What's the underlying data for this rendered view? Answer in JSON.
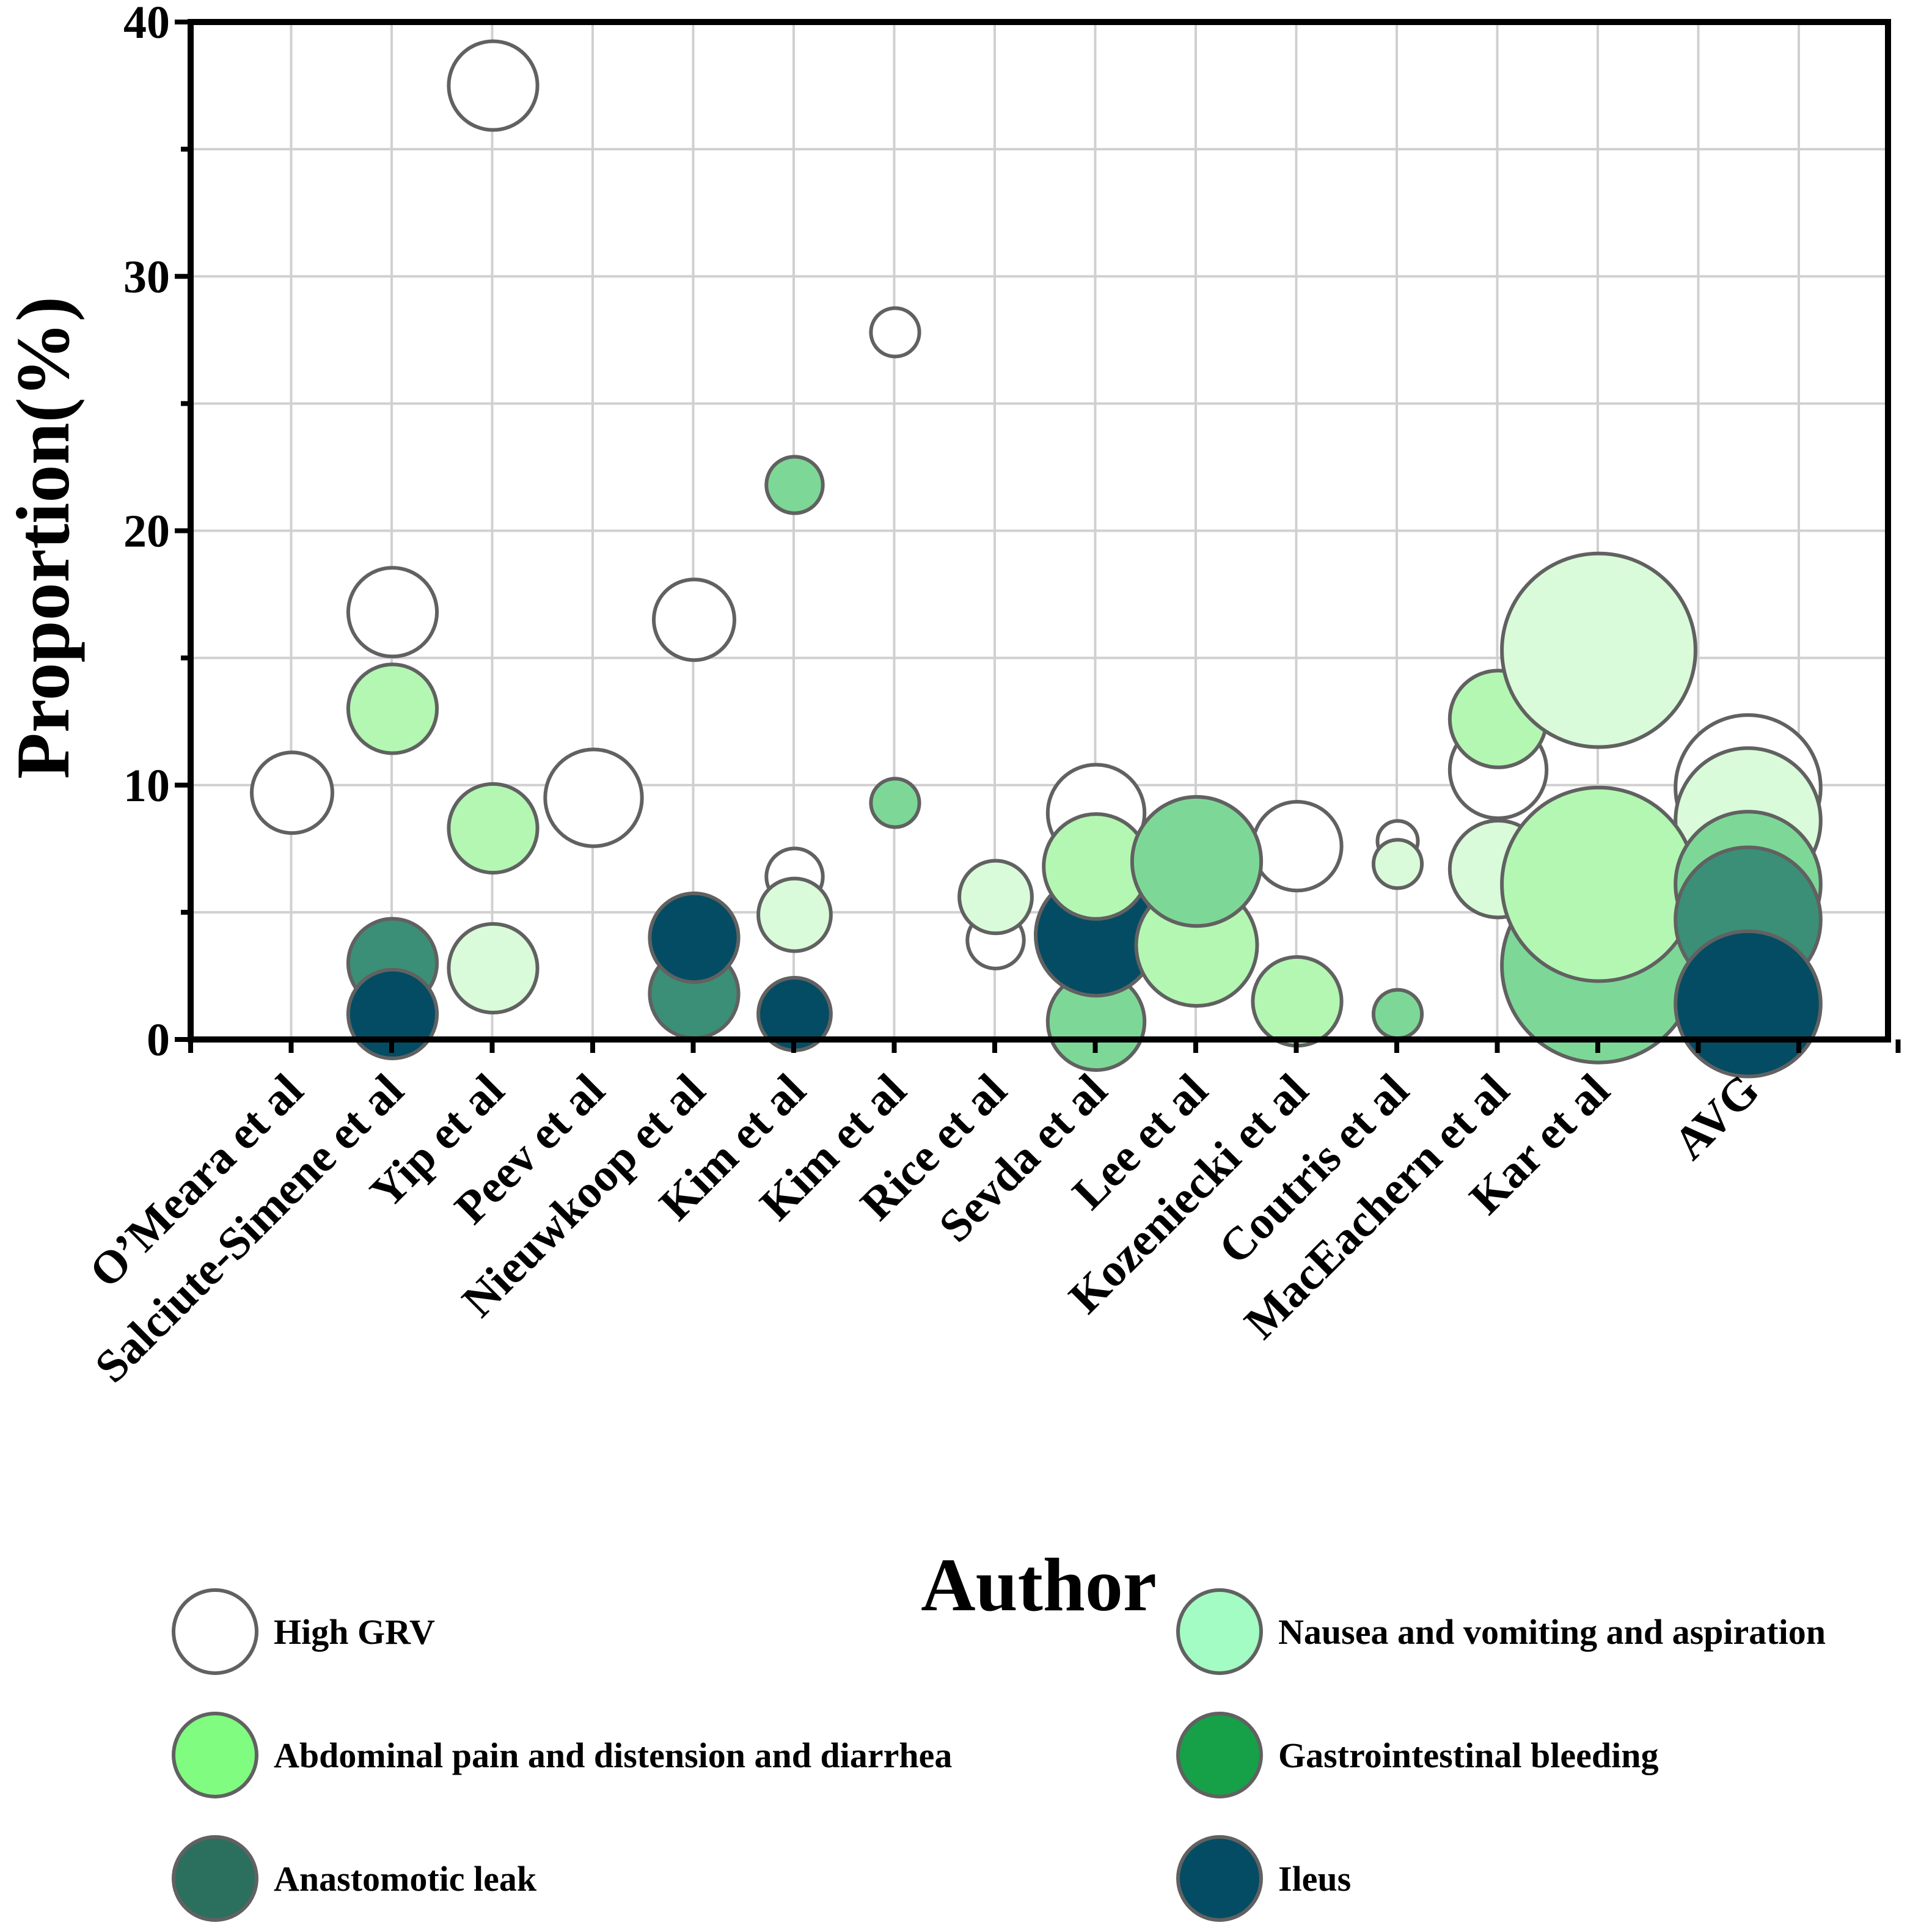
{
  "chart_data": {
    "type": "bubble",
    "title": "",
    "xlabel": "Author",
    "ylabel": "Proportion(%)",
    "ylim": [
      0,
      40
    ],
    "yticks": [
      0,
      10,
      20,
      30,
      40
    ],
    "grid": true,
    "legend_position": "bottom",
    "categories": [
      "O’Meara et al",
      "Salciute-Simene et al",
      "Yip et al",
      "Peev et al",
      "Nieuwkoop et al",
      "Kim et al",
      "Kim et al",
      "Rice et al",
      "Sevda et al",
      "Lee et al",
      "Kozeniecki et al",
      "Coutris et al",
      "MacEachern et al",
      "Kar et al",
      "AVG"
    ],
    "series": [
      {
        "name": "High GRV",
        "color": "#ffffff",
        "points": [
          {
            "category": 0,
            "y": 9.7,
            "size": 5
          },
          {
            "category": 1,
            "y": 16.8,
            "size": 5.5
          },
          {
            "category": 2,
            "y": 37.5,
            "size": 5.5
          },
          {
            "category": 3,
            "y": 9.5,
            "size": 6
          },
          {
            "category": 4,
            "y": 16.5,
            "size": 5
          },
          {
            "category": 5,
            "y": 6.4,
            "size": 3.5
          },
          {
            "category": 6,
            "y": 27.8,
            "size": 3
          },
          {
            "category": 7,
            "y": 3.9,
            "size": 3.5
          },
          {
            "category": 8,
            "y": 8.9,
            "size": 6
          },
          {
            "category": 9,
            "y": 3.7,
            "size": 5.5
          },
          {
            "category": 10,
            "y": 7.6,
            "size": 5.5
          },
          {
            "category": 11,
            "y": 7.8,
            "size": 2.5
          },
          {
            "category": 12,
            "y": 10.6,
            "size": 6
          },
          {
            "category": 14,
            "y": 9.9,
            "size": 9
          }
        ]
      },
      {
        "name": "Nausea and vomiting and aspiration",
        "color": "#d9fbd9",
        "points": [
          {
            "category": 2,
            "y": 2.8,
            "size": 5.5
          },
          {
            "category": 5,
            "y": 4.9,
            "size": 4.5
          },
          {
            "category": 7,
            "y": 5.6,
            "size": 4.5
          },
          {
            "category": 11,
            "y": 6.9,
            "size": 3
          },
          {
            "category": 12,
            "y": 6.7,
            "size": 6
          },
          {
            "category": 13,
            "y": 15.3,
            "size": 12
          },
          {
            "category": 14,
            "y": 8.6,
            "size": 9
          }
        ]
      },
      {
        "name": "Abdominal pain and distension and diarrhea",
        "color": "#b3f7b3",
        "points": [
          {
            "category": 1,
            "y": 13.0,
            "size": 5.5
          },
          {
            "category": 2,
            "y": 8.3,
            "size": 5.5
          },
          {
            "category": 8,
            "y": 6.8,
            "size": 6.5
          },
          {
            "category": 9,
            "y": 3.7,
            "size": 7.5
          },
          {
            "category": 10,
            "y": 1.5,
            "size": 5.5
          },
          {
            "category": 12,
            "y": 12.6,
            "size": 6
          },
          {
            "category": 13,
            "y": 6.1,
            "size": 12
          },
          {
            "category": 14,
            "y": 7.3,
            "size": 9
          }
        ]
      },
      {
        "name": "Gastrointestinal bleeding",
        "color": "#7dd897",
        "points": [
          {
            "category": 5,
            "y": 21.8,
            "size": 3.5
          },
          {
            "category": 6,
            "y": 9.3,
            "size": 3
          },
          {
            "category": 8,
            "y": 0.7,
            "size": 6
          },
          {
            "category": 9,
            "y": 7.0,
            "size": 8
          },
          {
            "category": 11,
            "y": 1.0,
            "size": 3
          },
          {
            "category": 13,
            "y": 2.9,
            "size": 12
          },
          {
            "category": 14,
            "y": 6.1,
            "size": 9
          }
        ]
      },
      {
        "name": "Anastomotic leak",
        "color": "#3b8f76",
        "points": [
          {
            "category": 1,
            "y": 3.0,
            "size": 5.5
          },
          {
            "category": 4,
            "y": 1.8,
            "size": 5.5
          },
          {
            "category": 14,
            "y": 4.7,
            "size": 9
          }
        ]
      },
      {
        "name": "Ileus",
        "color": "#044c64",
        "points": [
          {
            "category": 1,
            "y": 1.0,
            "size": 5.5
          },
          {
            "category": 4,
            "y": 4.0,
            "size": 5.5
          },
          {
            "category": 5,
            "y": 1.0,
            "size": 4.5
          },
          {
            "category": 8,
            "y": 4.1,
            "size": 7.5
          },
          {
            "category": 14,
            "y": 1.4,
            "size": 9
          }
        ]
      }
    ],
    "draw_order": [
      [
        0,
        0
      ],
      [
        0,
        1
      ],
      [
        0,
        2
      ],
      [
        0,
        3
      ],
      [
        0,
        4
      ],
      [
        0,
        5
      ],
      [
        0,
        6
      ],
      [
        0,
        7
      ],
      [
        0,
        8
      ],
      [
        0,
        9
      ],
      [
        0,
        10
      ],
      [
        0,
        11
      ],
      [
        0,
        12
      ],
      [
        0,
        13
      ],
      [
        2,
        0
      ],
      [
        4,
        0
      ],
      [
        5,
        0
      ],
      [
        1,
        0
      ],
      [
        2,
        1
      ],
      [
        4,
        1
      ],
      [
        5,
        1
      ],
      [
        3,
        0
      ],
      [
        1,
        1
      ],
      [
        5,
        2
      ],
      [
        1,
        2
      ],
      [
        3,
        1
      ],
      [
        3,
        2
      ],
      [
        5,
        3
      ],
      [
        2,
        2
      ],
      [
        1,
        3
      ],
      [
        2,
        3
      ],
      [
        2,
        4
      ],
      [
        3,
        3
      ],
      [
        2,
        5
      ],
      [
        1,
        4
      ],
      [
        1,
        5
      ],
      [
        3,
        4
      ],
      [
        3,
        5
      ],
      [
        1,
        6
      ],
      [
        2,
        6
      ],
      [
        3,
        6
      ],
      [
        4,
        2
      ],
      [
        5,
        4
      ]
    ],
    "legend": [
      {
        "label": "High GRV",
        "color": "#ffffff"
      },
      {
        "label": "Nausea and vomiting and aspiration",
        "color": "#a3fcc3"
      },
      {
        "label": "Abdominal pain and distension and diarrhea",
        "color": "#80fc80"
      },
      {
        "label": "Gastrointestinal bleeding",
        "color": "#16a048"
      },
      {
        "label": "Anastomotic leak",
        "color": "#2b6f5f"
      },
      {
        "label": "Ileus",
        "color": "#044c64"
      }
    ]
  }
}
